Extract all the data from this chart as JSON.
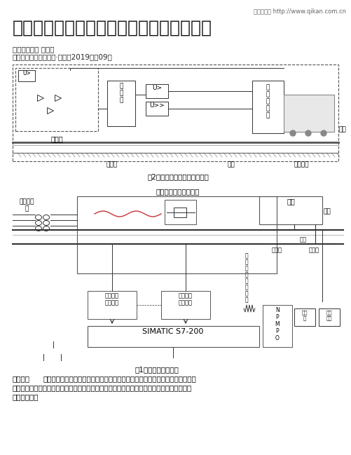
{
  "bg_color": "#ffffff",
  "header_text": "龙源期刊网 http://www.qikan.com.cn",
  "title": "地铁框架保护与钢轨电位限制装置原理浅析",
  "author": "作者：汤小霞 付胜华",
  "source": "来源：《中国房地产业·下旬》2019年第09期",
  "fig2_caption": "图2：钢轨电位限制装置原理图",
  "fig1_caption": "图1：框架保护原理图",
  "fig1_title": "整流器及直流开关柜体",
  "abstract_bold": "【摘要】",
  "abstract_line1": "分析了地铁电流、电压型框架保护原理及动作原因，阐述电流、电压型框架保护",
  "abstract_line2": "与钢轨电位限制装置的作用及配合关系，结合地铁框架保护及钢轨电位限制装置常见故障，优",
  "abstract_line3": "化配置方案。"
}
